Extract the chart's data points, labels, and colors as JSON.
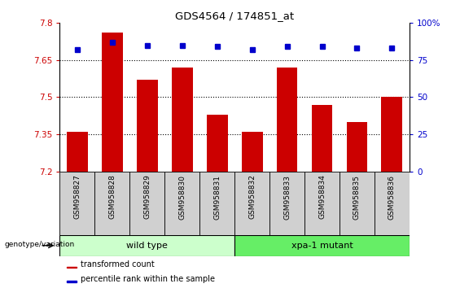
{
  "title": "GDS4564 / 174851_at",
  "categories": [
    "GSM958827",
    "GSM958828",
    "GSM958829",
    "GSM958830",
    "GSM958831",
    "GSM958832",
    "GSM958833",
    "GSM958834",
    "GSM958835",
    "GSM958836"
  ],
  "bar_values": [
    7.36,
    7.76,
    7.57,
    7.62,
    7.43,
    7.36,
    7.62,
    7.47,
    7.4,
    7.5
  ],
  "percentile_values": [
    82,
    87,
    85,
    85,
    84,
    82,
    84,
    84,
    83,
    83
  ],
  "bar_color": "#cc0000",
  "dot_color": "#0000cc",
  "ylim_left": [
    7.2,
    7.8
  ],
  "ylim_right": [
    0,
    100
  ],
  "yticks_left": [
    7.2,
    7.35,
    7.5,
    7.65,
    7.8
  ],
  "yticks_right": [
    0,
    25,
    50,
    75,
    100
  ],
  "grid_values": [
    7.35,
    7.5,
    7.65
  ],
  "wild_type_count": 5,
  "mutant_count": 5,
  "wild_type_label": "wild type",
  "mutant_label": "xpa-1 mutant",
  "wild_type_color": "#ccffcc",
  "mutant_color": "#66ee66",
  "genotype_label": "genotype/variation",
  "legend_bar_label": "transformed count",
  "legend_dot_label": "percentile rank within the sample",
  "bar_width": 0.6,
  "label_box_color": "#d0d0d0"
}
